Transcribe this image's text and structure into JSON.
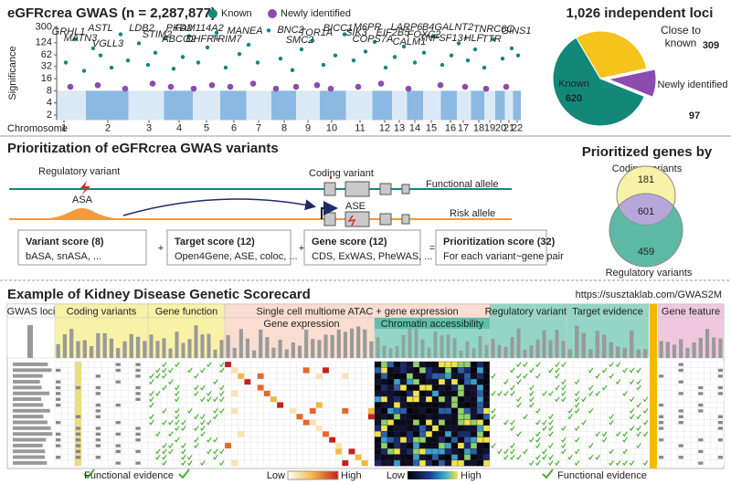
{
  "chart_data": [
    {
      "type": "scatter",
      "title": "eGFRcrea GWAS (n = 2,287,877)",
      "y_label": "Significance",
      "x_label": "Chromosome",
      "log_y": true,
      "ylim": [
        1.5,
        330
      ],
      "yticks": [
        2,
        4,
        8,
        16,
        32,
        62,
        124,
        300
      ],
      "threshold": 8,
      "xlim": [
        0,
        508
      ],
      "xticks": [
        {
          "value": 8,
          "label": "1"
        },
        {
          "value": 56,
          "label": "2"
        },
        {
          "value": 101,
          "label": "3"
        },
        {
          "value": 134,
          "label": "4"
        },
        {
          "value": 164,
          "label": "5"
        },
        {
          "value": 194,
          "label": "6"
        },
        {
          "value": 221,
          "label": "7"
        },
        {
          "value": 249,
          "label": "8"
        },
        {
          "value": 275,
          "label": "9"
        },
        {
          "value": 301,
          "label": "10"
        },
        {
          "value": 332,
          "label": "11"
        },
        {
          "value": 359,
          "label": "12"
        },
        {
          "value": 375,
          "label": "13"
        },
        {
          "value": 392,
          "label": "14"
        },
        {
          "value": 410,
          "label": "15"
        },
        {
          "value": 431,
          "label": "16"
        },
        {
          "value": 445,
          "label": "17"
        },
        {
          "value": 462,
          "label": "18"
        },
        {
          "value": 474,
          "label": "19"
        },
        {
          "value": 486,
          "label": "20"
        },
        {
          "value": 495,
          "label": "21"
        },
        {
          "value": 504,
          "label": "22"
        }
      ],
      "series": [
        {
          "name": "Known",
          "color": "#14877b",
          "x": [
            10,
            20,
            30,
            40,
            48,
            60,
            70,
            78,
            90,
            100,
            108,
            118,
            128,
            138,
            145,
            155,
            165,
            175,
            185,
            200,
            210,
            220,
            232,
            245,
            258,
            268,
            280,
            292,
            305,
            315,
            325,
            338,
            348,
            360,
            370,
            380,
            392,
            402,
            412,
            422,
            432,
            440,
            450,
            458,
            468,
            478,
            488,
            498,
            505
          ],
          "values": [
            40,
            150,
            25,
            90,
            60,
            30,
            200,
            45,
            120,
            35,
            70,
            160,
            28,
            55,
            180,
            40,
            95,
            220,
            30,
            65,
            110,
            40,
            250,
            50,
            26,
            85,
            140,
            35,
            60,
            200,
            45,
            75,
            130,
            30,
            55,
            100,
            40,
            70,
            180,
            35,
            60,
            120,
            45,
            85,
            30,
            150,
            50,
            90,
            60
          ]
        },
        {
          "name": "Newly identified",
          "color": "#8c4caf",
          "x": [
            15,
            45,
            75,
            105,
            125,
            150,
            170,
            190,
            215,
            240,
            262,
            285,
            300,
            330,
            355,
            385,
            420,
            447,
            470,
            492
          ],
          "values": [
            10,
            11,
            9,
            12,
            10,
            9,
            11,
            10,
            12,
            9,
            10,
            11,
            9,
            10,
            12,
            9,
            11,
            10,
            9,
            10
          ]
        }
      ],
      "annotations": [
        "GRHL1",
        "MATN3",
        "ASTL",
        "VGLL3",
        "LDB2",
        "STIM2",
        "PKD2",
        "FAM114A2",
        "ABCG2",
        "DHFR+",
        "TRIM7",
        "MANEA",
        "BNC2",
        "SMC2",
        "TOR1A",
        "BICC1",
        "SIK3",
        "M6PR",
        "COPS7A",
        "EIF2B5",
        "LARP6",
        "CALM1",
        "FOXC2",
        "B4GALNT2",
        "TNFSF13+",
        "HLF",
        "TNRC6C",
        "TTR",
        "GINS1"
      ]
    },
    {
      "type": "pie",
      "title": "1,026 independent loci",
      "categories": [
        "Known",
        "Close to known",
        "Newly identified"
      ],
      "values": [
        620,
        309,
        97
      ],
      "colors": [
        "#14877b",
        "#f5c31c",
        "#8c4caf"
      ]
    }
  ],
  "prioritization": {
    "title": "Prioritization of eGFRcrea GWAS variants",
    "regulatory_variant": "Regulatory variant",
    "asa": "ASA",
    "coding_variant": "Coding variant",
    "ase": "ASE",
    "functional_allele": "Functional allele",
    "risk_allele": "Risk allele",
    "scores": [
      {
        "name": "Variant score (8)",
        "detail": "bASA, snASA, ..."
      },
      {
        "name": "Target score (12)",
        "detail": "Open4Gene, ASE, coloc, ..."
      },
      {
        "name": "Gene score (12)",
        "detail": "CDS, ExWAS, PheWAS, ..."
      },
      {
        "name": "Prioritization score (32)",
        "detail": "For each variant~gene pair"
      }
    ],
    "operators": [
      "+",
      "+",
      "="
    ]
  },
  "venn": {
    "title": "Prioritized genes by",
    "top_label": "Coding variants",
    "bottom_label": "Regulatory variants",
    "coding_only": 181,
    "both": 601,
    "regulatory_only": 459
  },
  "scorecard": {
    "title": "Example of Kidney Disease Genetic Scorecard",
    "url": "https://susztaklab.com/GWAS2M",
    "groups": [
      "GWAS loci",
      "Coding variants",
      "Gene function",
      "Single cell multiome ATAC + gene expression",
      "Regulatory variants",
      "Target evidence",
      "Gene feature"
    ],
    "subgroups": [
      "Gene expression",
      "Chromatin accessibility"
    ],
    "legend": {
      "check": "Functional evidence",
      "low": "Low",
      "high": "High"
    }
  }
}
